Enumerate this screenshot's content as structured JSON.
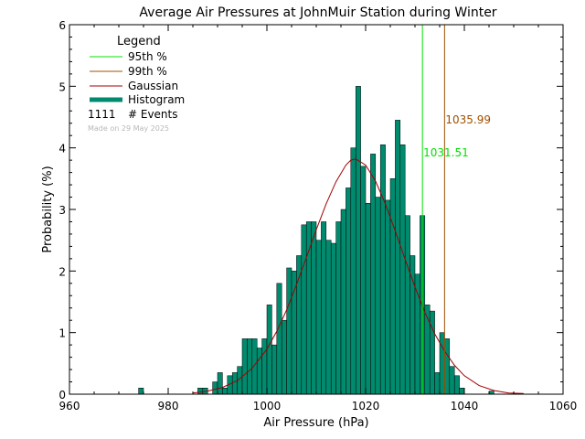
{
  "chart_data": {
    "type": "bar",
    "title": "Average Air Pressures at JohnMuir Station during Winter",
    "xlabel": "Air Pressure (hPa)",
    "ylabel": "Probability (%)",
    "xlim": [
      960,
      1060
    ],
    "ylim": [
      0,
      6
    ],
    "xticks": [
      960,
      980,
      1000,
      1020,
      1040,
      1060
    ],
    "yticks": [
      0,
      1,
      2,
      3,
      4,
      5,
      6
    ],
    "bin_width": 1,
    "histogram": {
      "x_start": [
        974,
        986,
        987,
        989,
        990,
        991,
        992,
        993,
        994,
        995,
        996,
        997,
        998,
        999,
        1000,
        1001,
        1002,
        1003,
        1004,
        1005,
        1006,
        1007,
        1008,
        1009,
        1010,
        1011,
        1012,
        1013,
        1014,
        1015,
        1016,
        1017,
        1018,
        1019,
        1020,
        1021,
        1022,
        1023,
        1024,
        1025,
        1026,
        1027,
        1028,
        1029,
        1030,
        1031,
        1032,
        1033,
        1034,
        1035,
        1036,
        1037,
        1038,
        1039,
        1045
      ],
      "values": [
        0.1,
        0.1,
        0.1,
        0.2,
        0.35,
        0.1,
        0.3,
        0.35,
        0.45,
        0.9,
        0.9,
        0.9,
        0.75,
        0.9,
        1.45,
        0.8,
        1.8,
        1.2,
        2.05,
        2.0,
        2.25,
        2.75,
        2.8,
        2.8,
        2.5,
        2.8,
        2.5,
        2.45,
        2.8,
        3.0,
        3.35,
        4.0,
        5.0,
        3.7,
        3.1,
        3.9,
        3.2,
        4.05,
        3.15,
        3.5,
        4.45,
        4.05,
        2.9,
        2.25,
        1.95,
        2.9,
        1.45,
        1.35,
        0.35,
        1.0,
        0.9,
        0.45,
        0.3,
        0.1,
        0.05
      ]
    },
    "gaussian": {
      "x": [
        985,
        988,
        991,
        994,
        997,
        1000,
        1002,
        1004,
        1006,
        1008,
        1010,
        1012,
        1014,
        1016,
        1017,
        1018,
        1020,
        1022,
        1024,
        1026,
        1028,
        1030,
        1032,
        1034,
        1036,
        1038,
        1040,
        1043,
        1046,
        1049,
        1052
      ],
      "y": [
        0.02,
        0.05,
        0.11,
        0.22,
        0.42,
        0.73,
        1.02,
        1.37,
        1.78,
        2.22,
        2.67,
        3.09,
        3.45,
        3.72,
        3.8,
        3.82,
        3.72,
        3.46,
        3.09,
        2.65,
        2.19,
        1.74,
        1.33,
        0.98,
        0.7,
        0.47,
        0.3,
        0.14,
        0.06,
        0.02,
        0.01
      ]
    },
    "percentiles": [
      {
        "name": "95th %",
        "value": 1031.51,
        "label": "1031.51",
        "color": "#00e000"
      },
      {
        "name": "99th %",
        "value": 1035.99,
        "label": "1035.99",
        "color": "#a05000"
      }
    ],
    "legend": {
      "title": "Legend",
      "placement": "top-left",
      "items": [
        {
          "label": "95th %",
          "color": "#00e000",
          "kind": "line"
        },
        {
          "label": "99th %",
          "color": "#a05000",
          "kind": "line"
        },
        {
          "label": "Gaussian",
          "color": "#a00000",
          "kind": "line"
        },
        {
          "label": "Histogram",
          "color": "#008a6e",
          "kind": "thick"
        }
      ],
      "events_count": "1111",
      "events_label": "# Events",
      "made_on": "Made on 29 May 2025"
    },
    "colors": {
      "histogram_fill": "#008a6e",
      "gaussian": "#a00000",
      "axes": "#000000",
      "made_on": "#b8b8b8"
    },
    "grid": false
  }
}
